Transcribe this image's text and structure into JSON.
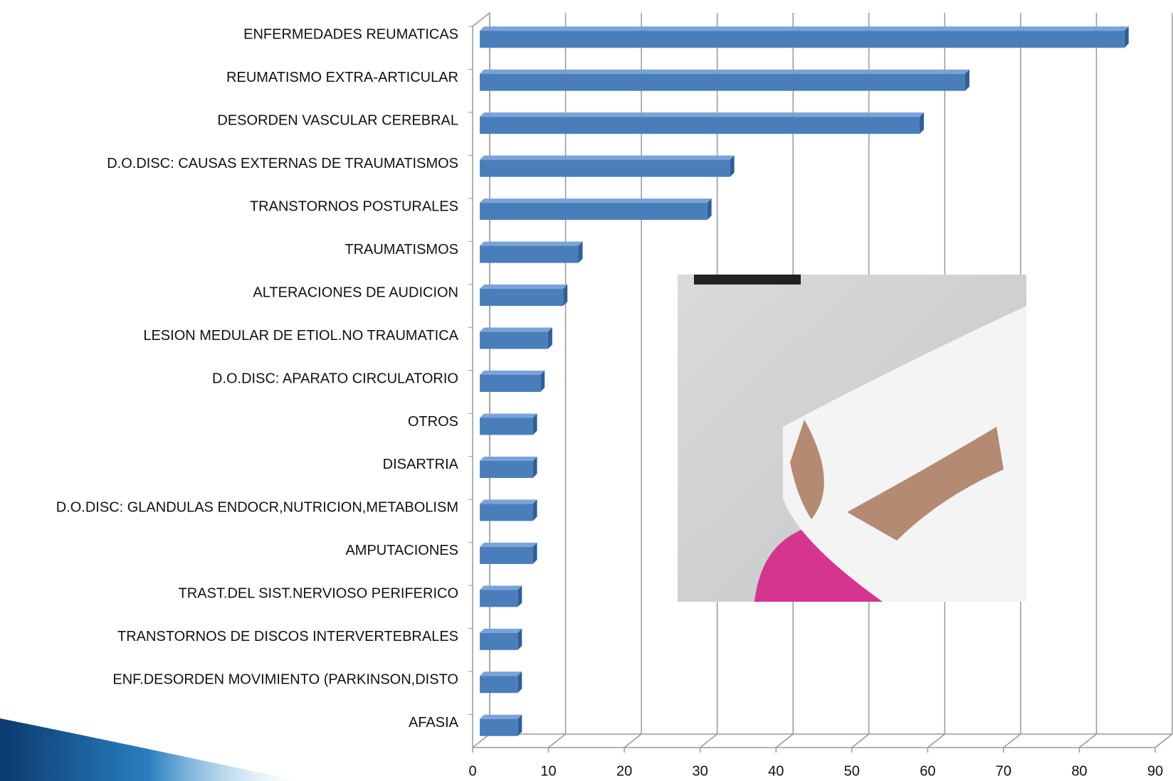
{
  "chart_data": {
    "type": "bar3d_horizontal",
    "categories": [
      "ENFERMEDADES REUMATICAS",
      "REUMATISMO EXTRA-ARTICULAR",
      "DESORDEN VASCULAR CEREBRAL",
      "D.O.DISC: CAUSAS EXTERNAS DE TRAUMATISMOS",
      "TRANSTORNOS POSTURALES",
      "TRAUMATISMOS",
      "ALTERACIONES DE AUDICION",
      "LESION MEDULAR DE ETIOL.NO TRAUMATICA",
      "D.O.DISC: APARATO CIRCULATORIO",
      "OTROS",
      "DISARTRIA",
      "D.O.DISC: GLANDULAS ENDOCR,NUTRICION,METABOLISM",
      "AMPUTACIONES",
      "TRAST.DEL SIST.NERVIOSO PERIFERICO",
      "TRANSTORNOS DE DISCOS INTERVERTEBRALES",
      "ENF.DESORDEN MOVIMIENTO (PARKINSON,DISTO",
      "AFASIA"
    ],
    "values": [
      85,
      64,
      58,
      33,
      30,
      13,
      11,
      9,
      8,
      7,
      7,
      7,
      7,
      5,
      5,
      5,
      5
    ],
    "color": "#4a7ebb",
    "xlim": [
      0,
      90
    ],
    "xticks": [
      0,
      10,
      20,
      30,
      40,
      50,
      60,
      70,
      80,
      90
    ],
    "grid": true
  }
}
